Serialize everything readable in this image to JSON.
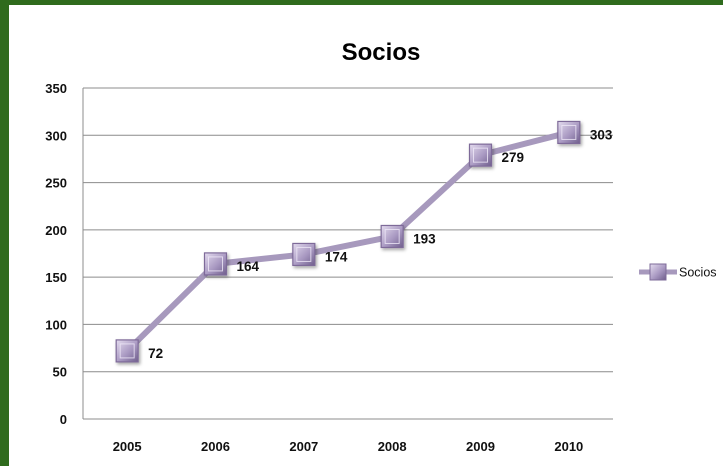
{
  "chart_data": {
    "type": "line",
    "title": "Socios",
    "xlabel": "",
    "ylabel": "",
    "categories": [
      "2005",
      "2006",
      "2007",
      "2008",
      "2009",
      "2010"
    ],
    "series": [
      {
        "name": "Socios",
        "values": [
          72,
          164,
          174,
          193,
          279,
          303
        ]
      }
    ],
    "ylim": [
      0,
      350
    ],
    "yticks": [
      0,
      50,
      100,
      150,
      200,
      250,
      300,
      350
    ],
    "grid": true,
    "legend": "right",
    "data_labels": true,
    "colors": {
      "frame": "#2f6b1d",
      "series_line": "#a799bd",
      "marker_light": "#d7cde5",
      "marker_dark": "#7e6b99",
      "grid": "#8c8c8c"
    }
  }
}
